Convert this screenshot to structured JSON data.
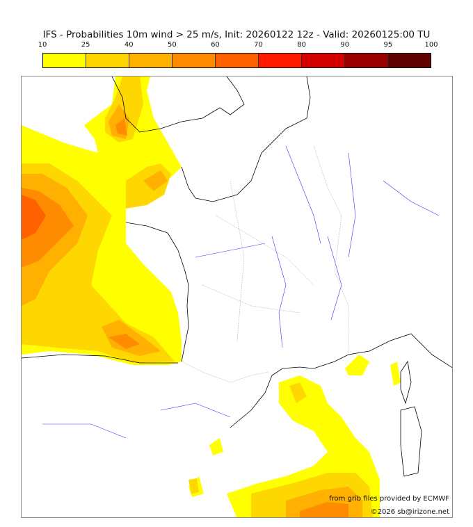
{
  "title": "IFS - Probabilities 10m wind > 25 m/s, Init: 20260122 12z - Valid: 20260125:00 TU",
  "colorbar": {
    "ticks": [
      "10",
      "25",
      "40",
      "50",
      "60",
      "70",
      "80",
      "90",
      "95",
      "100"
    ],
    "colors": [
      "#ffff00",
      "#ffd700",
      "#ffb000",
      "#ff8c00",
      "#ff6000",
      "#ff1a00",
      "#d40000",
      "#9a0000",
      "#600000"
    ]
  },
  "credits": {
    "source": "from grib files provided by ECMWF",
    "copyright": "©2026 sb@irizone.net"
  }
}
